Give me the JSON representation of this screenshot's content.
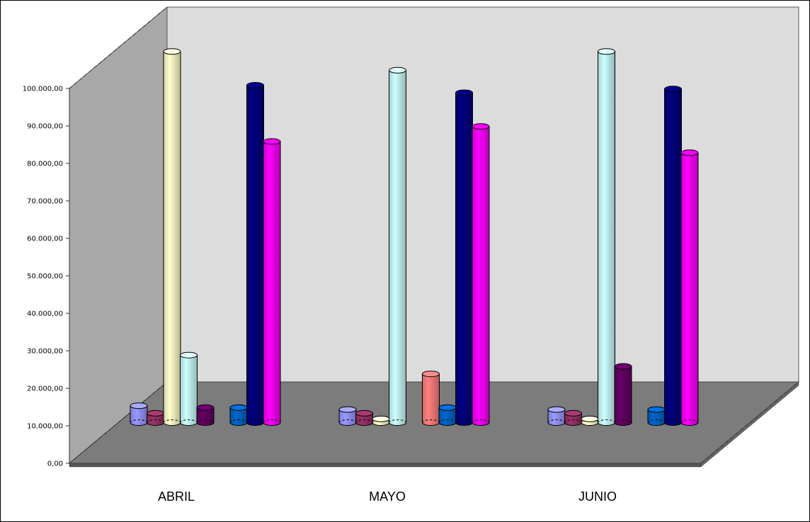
{
  "chart_data": {
    "type": "bar",
    "style": "3d-cylinder",
    "categories": [
      "ABRIL",
      "MAYO",
      "JUNIO"
    ],
    "y_tick_labels": [
      "0,00",
      "10.000,00",
      "20.000,00",
      "30.000,00",
      "40.000,00",
      "50.000,00",
      "60.000,00",
      "70.000,00",
      "80.000,00",
      "90.000,00",
      "100.000,00"
    ],
    "ylim": [
      0,
      100000
    ],
    "grid": false,
    "legend": "none",
    "series": [
      {
        "color": "#9999ff",
        "values": [
          4500,
          3500,
          3500
        ]
      },
      {
        "color": "#993366",
        "values": [
          2500,
          2500,
          2500
        ]
      },
      {
        "color": "#ffffcc",
        "values": [
          99000,
          1000,
          1000
        ]
      },
      {
        "color": "#ccffff",
        "values": [
          18000,
          94000,
          99000
        ]
      },
      {
        "color": "#660066",
        "values": [
          4000,
          0,
          15000
        ]
      },
      {
        "color": "#ff8080",
        "values": [
          0,
          13000,
          0
        ]
      },
      {
        "color": "#0066cc",
        "values": [
          4000,
          4000,
          3500
        ]
      },
      {
        "color": "#000080",
        "values": [
          90000,
          88000,
          89000
        ]
      },
      {
        "color": "#ff00ff",
        "values": [
          75000,
          79000,
          72000
        ]
      }
    ]
  }
}
